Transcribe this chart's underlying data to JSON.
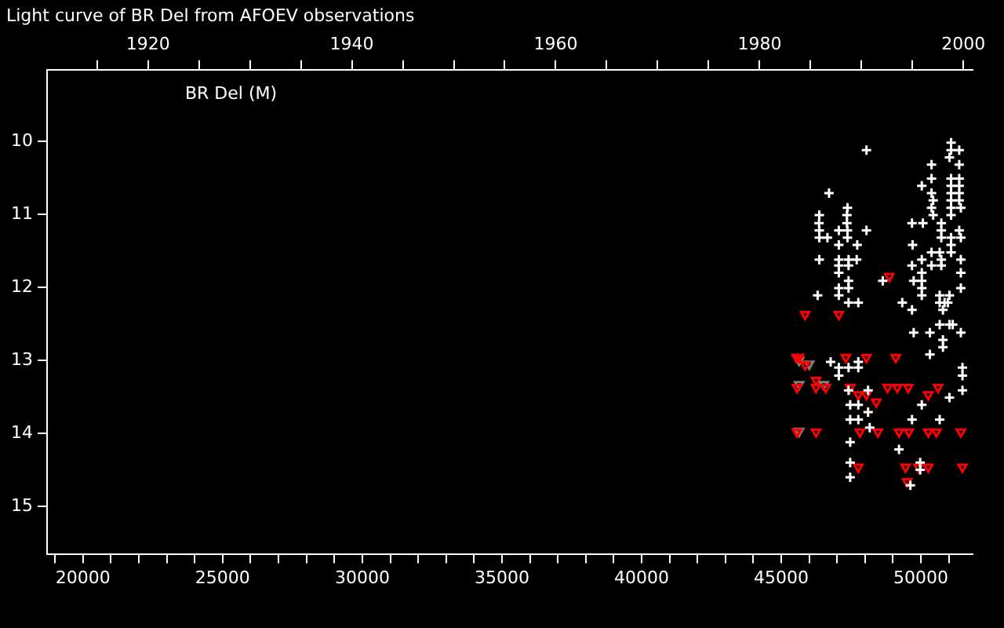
{
  "chart_data": {
    "type": "scatter",
    "title": "Light curve of BR Del from AFOEV observations",
    "annotations": [
      "BR Del (M)"
    ],
    "xlim": [
      18713,
      51852
    ],
    "xticks": [
      {
        "value": 19000,
        "label": null
      },
      {
        "value": 20000,
        "label": "20000"
      },
      {
        "value": 21000,
        "label": null
      },
      {
        "value": 22000,
        "label": null
      },
      {
        "value": 23000,
        "label": null
      },
      {
        "value": 24000,
        "label": null
      },
      {
        "value": 25000,
        "label": "25000"
      },
      {
        "value": 26000,
        "label": null
      },
      {
        "value": 27000,
        "label": null
      },
      {
        "value": 28000,
        "label": null
      },
      {
        "value": 29000,
        "label": null
      },
      {
        "value": 30000,
        "label": "30000"
      },
      {
        "value": 31000,
        "label": null
      },
      {
        "value": 32000,
        "label": null
      },
      {
        "value": 33000,
        "label": null
      },
      {
        "value": 34000,
        "label": null
      },
      {
        "value": 35000,
        "label": "35000"
      },
      {
        "value": 36000,
        "label": null
      },
      {
        "value": 37000,
        "label": null
      },
      {
        "value": 38000,
        "label": null
      },
      {
        "value": 39000,
        "label": null
      },
      {
        "value": 40000,
        "label": "40000"
      },
      {
        "value": 41000,
        "label": null
      },
      {
        "value": 42000,
        "label": null
      },
      {
        "value": 43000,
        "label": null
      },
      {
        "value": 44000,
        "label": null
      },
      {
        "value": 45000,
        "label": "45000"
      },
      {
        "value": 46000,
        "label": null
      },
      {
        "value": 47000,
        "label": null
      },
      {
        "value": 48000,
        "label": null
      },
      {
        "value": 49000,
        "label": null
      },
      {
        "value": 50000,
        "label": "50000"
      },
      {
        "value": 51000,
        "label": null
      }
    ],
    "x2lim": [
      1910.1,
      2000.9
    ],
    "x2ticks": [
      {
        "value": 1915,
        "label": null
      },
      {
        "value": 1920,
        "label": "1920"
      },
      {
        "value": 1925,
        "label": null
      },
      {
        "value": 1930,
        "label": null
      },
      {
        "value": 1935,
        "label": null
      },
      {
        "value": 1940,
        "label": "1940"
      },
      {
        "value": 1945,
        "label": null
      },
      {
        "value": 1950,
        "label": null
      },
      {
        "value": 1955,
        "label": null
      },
      {
        "value": 1960,
        "label": "1960"
      },
      {
        "value": 1965,
        "label": null
      },
      {
        "value": 1970,
        "label": null
      },
      {
        "value": 1975,
        "label": null
      },
      {
        "value": 1980,
        "label": "1980"
      },
      {
        "value": 1985,
        "label": null
      },
      {
        "value": 1990,
        "label": null
      },
      {
        "value": 1995,
        "label": null
      },
      {
        "value": 2000,
        "label": "2000"
      }
    ],
    "ylim": [
      15.65,
      9.02
    ],
    "yticks": [
      10,
      11,
      12,
      13,
      14,
      15
    ],
    "legend": false,
    "grid": false,
    "series": [
      {
        "marker": "cross",
        "color": "#ffffff",
        "x": [
          48051,
          51081,
          51081,
          51372,
          51022,
          50381,
          51372,
          50381,
          51081,
          51372,
          46711,
          50032,
          51081,
          51372,
          50381,
          51081,
          51372,
          50440,
          51081,
          51372,
          47371,
          50381,
          51081,
          51430,
          46362,
          47352,
          50440,
          51081,
          46352,
          47352,
          49682,
          50071,
          50731,
          46362,
          47061,
          47371,
          48051,
          50731,
          51372,
          46362,
          46653,
          47371,
          50731,
          51081,
          51430,
          47061,
          47720,
          49702,
          51081,
          50381,
          50672,
          51081,
          46362,
          47061,
          47410,
          47701,
          50032,
          50731,
          51430,
          47061,
          47410,
          49682,
          50381,
          50731,
          47061,
          50032,
          51430,
          47410,
          48634,
          49741,
          50032,
          47061,
          47410,
          50032,
          51430,
          46303,
          47061,
          50032,
          50672,
          51022,
          47410,
          47759,
          49333,
          50672,
          50847,
          50964,
          49682,
          50789,
          50672,
          51022,
          51139,
          49741,
          50323,
          51430,
          50789,
          50789,
          50323,
          46769,
          47759,
          51488,
          47061,
          47410,
          47759,
          47061,
          51488,
          47410,
          48109,
          51488,
          51022,
          47468,
          47759,
          50032,
          48109,
          47468,
          47759,
          49682,
          50672,
          48167,
          47468,
          49216,
          47468,
          49974,
          49974,
          47468,
          49624
        ],
        "values": [
          10.12,
          10.02,
          10.12,
          10.12,
          10.22,
          10.32,
          10.32,
          10.51,
          10.51,
          10.51,
          10.71,
          10.61,
          10.61,
          10.61,
          10.71,
          10.71,
          10.71,
          10.81,
          10.81,
          10.81,
          10.91,
          10.91,
          10.91,
          10.91,
          11.01,
          11.01,
          11.01,
          11.01,
          11.12,
          11.12,
          11.12,
          11.12,
          11.12,
          11.22,
          11.22,
          11.22,
          11.22,
          11.22,
          11.22,
          11.32,
          11.32,
          11.32,
          11.32,
          11.32,
          11.32,
          11.42,
          11.42,
          11.42,
          11.42,
          11.52,
          11.52,
          11.52,
          11.62,
          11.62,
          11.62,
          11.62,
          11.62,
          11.62,
          11.62,
          11.7,
          11.7,
          11.7,
          11.7,
          11.7,
          11.8,
          11.8,
          11.8,
          11.91,
          11.91,
          11.91,
          11.91,
          12.01,
          12.01,
          12.01,
          12.01,
          12.11,
          12.11,
          12.11,
          12.11,
          12.11,
          12.21,
          12.21,
          12.21,
          12.21,
          12.21,
          12.21,
          12.31,
          12.31,
          12.51,
          12.51,
          12.51,
          12.62,
          12.62,
          12.62,
          12.72,
          12.82,
          12.92,
          13.02,
          13.02,
          13.1,
          13.1,
          13.1,
          13.1,
          13.21,
          13.21,
          13.41,
          13.41,
          13.41,
          13.51,
          13.61,
          13.61,
          13.61,
          13.71,
          13.81,
          13.81,
          13.81,
          13.81,
          13.92,
          14.12,
          14.22,
          14.4,
          14.4,
          14.5,
          14.6,
          14.71
        ]
      },
      {
        "marker": "triangle",
        "color": "#ff0000",
        "x": [
          48867,
          45857,
          47061,
          45550,
          45640,
          47313,
          48051,
          49100,
          45857,
          46245,
          45565,
          46245,
          46594,
          47468,
          48808,
          49158,
          49546,
          50614,
          47759,
          48051,
          50265,
          48400,
          45565,
          46245,
          47818,
          48459,
          49216,
          49566,
          50265,
          50556,
          51430,
          47759,
          49449,
          49915,
          50265,
          51488,
          49507
        ],
        "values": [
          11.85,
          12.37,
          12.37,
          12.96,
          12.96,
          12.96,
          12.96,
          12.96,
          13.06,
          13.27,
          13.37,
          13.37,
          13.37,
          13.37,
          13.37,
          13.37,
          13.37,
          13.37,
          13.47,
          13.47,
          13.47,
          13.57,
          13.98,
          13.98,
          13.98,
          13.98,
          13.98,
          13.98,
          13.98,
          13.98,
          13.98,
          14.46,
          14.46,
          14.46,
          14.46,
          14.46,
          14.66
        ]
      },
      {
        "marker": "triangle",
        "color": "#7f7f7f",
        "x": [
          45640,
          46000,
          45640,
          46520,
          45640
        ],
        "values": [
          13.0,
          13.05,
          13.33,
          13.33,
          13.97
        ]
      }
    ]
  }
}
